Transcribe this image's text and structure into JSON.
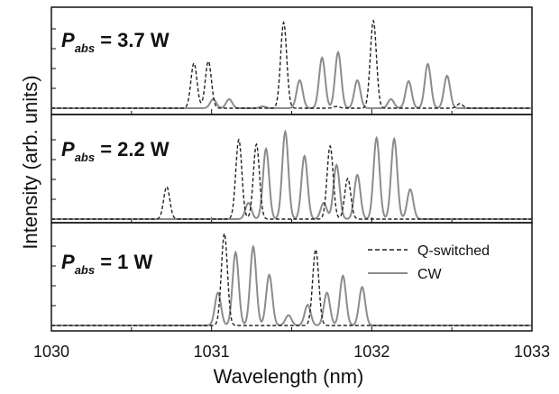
{
  "chart_data": {
    "type": "line",
    "xlabel": "Wavelength (nm)",
    "ylabel": "Intensity (arb. units)",
    "xlim": [
      1030,
      1033
    ],
    "x_ticks": [
      "1030",
      "1031",
      "1032",
      "1033"
    ],
    "legend": {
      "placement": "bottom-panel top-right",
      "entries": [
        {
          "label": "Q-switched",
          "style": "dashed",
          "color": "#222222"
        },
        {
          "label": "CW",
          "style": "solid",
          "color": "#8c8c8c"
        }
      ]
    },
    "panels": [
      {
        "label": {
          "symbol": "P",
          "sub": "abs",
          "value": "= 3.7 W"
        },
        "series": [
          {
            "name": "Q-switched",
            "peaks": [
              {
                "x": 1030.89,
                "y": 0.5
              },
              {
                "x": 1030.98,
                "y": 0.52
              },
              {
                "x": 1031.45,
                "y": 0.95
              },
              {
                "x": 1031.78,
                "y": 0.02
              },
              {
                "x": 1032.01,
                "y": 0.97
              },
              {
                "x": 1032.55,
                "y": 0.05
              }
            ]
          },
          {
            "name": "CW",
            "peaks": [
              {
                "x": 1031.01,
                "y": 0.1
              },
              {
                "x": 1031.11,
                "y": 0.1
              },
              {
                "x": 1031.32,
                "y": 0.02
              },
              {
                "x": 1031.55,
                "y": 0.31
              },
              {
                "x": 1031.69,
                "y": 0.56
              },
              {
                "x": 1031.79,
                "y": 0.62
              },
              {
                "x": 1031.91,
                "y": 0.31
              },
              {
                "x": 1032.12,
                "y": 0.1
              },
              {
                "x": 1032.23,
                "y": 0.3
              },
              {
                "x": 1032.35,
                "y": 0.49
              },
              {
                "x": 1032.47,
                "y": 0.36
              }
            ]
          }
        ]
      },
      {
        "label": {
          "symbol": "P",
          "sub": "abs",
          "value": "= 2.2 W"
        },
        "series": [
          {
            "name": "Q-switched",
            "peaks": [
              {
                "x": 1030.72,
                "y": 0.36
              },
              {
                "x": 1031.17,
                "y": 0.88
              },
              {
                "x": 1031.28,
                "y": 0.83
              },
              {
                "x": 1031.74,
                "y": 0.81
              },
              {
                "x": 1031.85,
                "y": 0.45
              }
            ]
          },
          {
            "name": "CW",
            "peaks": [
              {
                "x": 1031.23,
                "y": 0.18
              },
              {
                "x": 1031.34,
                "y": 0.78
              },
              {
                "x": 1031.46,
                "y": 0.97
              },
              {
                "x": 1031.58,
                "y": 0.7
              },
              {
                "x": 1031.7,
                "y": 0.18
              },
              {
                "x": 1031.78,
                "y": 0.6
              },
              {
                "x": 1031.91,
                "y": 0.49
              },
              {
                "x": 1032.03,
                "y": 0.9
              },
              {
                "x": 1032.14,
                "y": 0.89
              },
              {
                "x": 1032.24,
                "y": 0.33
              }
            ]
          }
        ]
      },
      {
        "label": {
          "symbol": "P",
          "sub": "abs",
          "value": "= 1 W"
        },
        "series": [
          {
            "name": "Q-switched",
            "peaks": [
              {
                "x": 1031.08,
                "y": 0.98
              },
              {
                "x": 1031.65,
                "y": 0.81
              }
            ]
          },
          {
            "name": "CW",
            "peaks": [
              {
                "x": 1031.04,
                "y": 0.35
              },
              {
                "x": 1031.15,
                "y": 0.78
              },
              {
                "x": 1031.26,
                "y": 0.84
              },
              {
                "x": 1031.36,
                "y": 0.54
              },
              {
                "x": 1031.48,
                "y": 0.11
              },
              {
                "x": 1031.6,
                "y": 0.22
              },
              {
                "x": 1031.72,
                "y": 0.35
              },
              {
                "x": 1031.82,
                "y": 0.53
              },
              {
                "x": 1031.94,
                "y": 0.41
              }
            ]
          }
        ]
      }
    ]
  }
}
